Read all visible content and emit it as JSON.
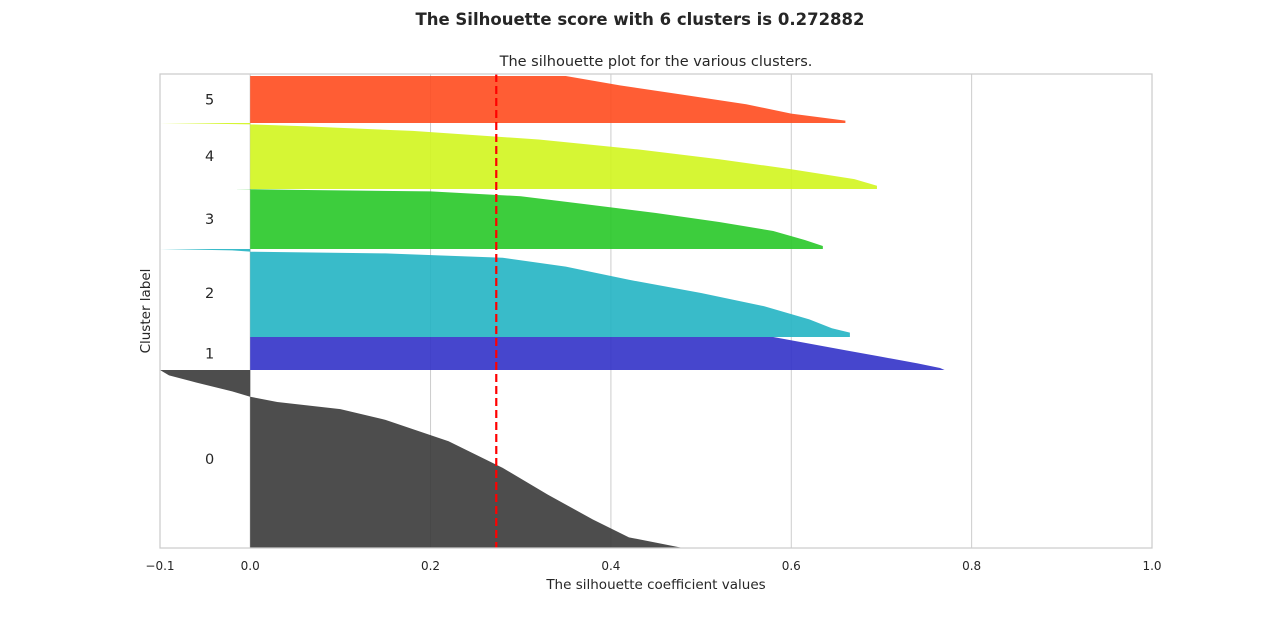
{
  "chart_data": {
    "type": "silhouette",
    "suptitle": "The Silhouette score with 6 clusters is 0.272882",
    "title": "The silhouette plot for the various clusters.",
    "xlabel": "The silhouette coefficient values",
    "ylabel": "Cluster label",
    "xlim": [
      -0.1,
      1.0
    ],
    "xticks": [
      {
        "value": -0.1,
        "label": "−0.1"
      },
      {
        "value": 0.0,
        "label": "0.0"
      },
      {
        "value": 0.2,
        "label": "0.2"
      },
      {
        "value": 0.4,
        "label": "0.4"
      },
      {
        "value": 0.6,
        "label": "0.6"
      },
      {
        "value": 0.8,
        "label": "0.8"
      },
      {
        "value": 1.0,
        "label": "1.0"
      }
    ],
    "grid": "vertical",
    "y_total": 474,
    "average_score": 0.272882,
    "average_line_color": "#ff0000",
    "clusters": [
      {
        "label": "0",
        "color": "#3a3a3a",
        "size": 178,
        "profile": [
          [
            0.0,
            0.48
          ],
          [
            0.06,
            0.42
          ],
          [
            0.16,
            0.38
          ],
          [
            0.3,
            0.33
          ],
          [
            0.45,
            0.28
          ],
          [
            0.6,
            0.22
          ],
          [
            0.72,
            0.15
          ],
          [
            0.78,
            0.1
          ],
          [
            0.82,
            0.03
          ],
          [
            0.85,
            0.0
          ],
          [
            0.88,
            -0.02
          ],
          [
            0.93,
            -0.06
          ],
          [
            0.97,
            -0.09
          ],
          [
            1.0,
            -0.1
          ]
        ]
      },
      {
        "label": "1",
        "color": "#3232c8",
        "size": 33,
        "profile": [
          [
            0.0,
            0.77
          ],
          [
            0.06,
            0.765
          ],
          [
            0.2,
            0.74
          ],
          [
            0.4,
            0.7
          ],
          [
            0.6,
            0.66
          ],
          [
            0.8,
            0.62
          ],
          [
            1.0,
            0.58
          ]
        ]
      },
      {
        "label": "2",
        "color": "#23b4c3",
        "size": 88,
        "profile": [
          [
            0.0,
            0.665
          ],
          [
            0.05,
            0.665
          ],
          [
            0.1,
            0.645
          ],
          [
            0.2,
            0.62
          ],
          [
            0.35,
            0.57
          ],
          [
            0.5,
            0.5
          ],
          [
            0.65,
            0.42
          ],
          [
            0.8,
            0.35
          ],
          [
            0.9,
            0.28
          ],
          [
            0.95,
            0.15
          ],
          [
            0.97,
            0.0
          ],
          [
            0.985,
            -0.02
          ],
          [
            1.0,
            -0.1
          ]
        ]
      },
      {
        "label": "3",
        "color": "#28c828",
        "size": 60,
        "profile": [
          [
            0.0,
            0.635
          ],
          [
            0.05,
            0.635
          ],
          [
            0.15,
            0.615
          ],
          [
            0.3,
            0.58
          ],
          [
            0.45,
            0.52
          ],
          [
            0.6,
            0.45
          ],
          [
            0.75,
            0.37
          ],
          [
            0.88,
            0.3
          ],
          [
            0.96,
            0.2
          ],
          [
            0.985,
            0.05
          ],
          [
            1.0,
            -0.015
          ]
        ]
      },
      {
        "label": "4",
        "color": "#d2f51e",
        "size": 66,
        "profile": [
          [
            0.0,
            0.695
          ],
          [
            0.05,
            0.695
          ],
          [
            0.15,
            0.67
          ],
          [
            0.3,
            0.6
          ],
          [
            0.45,
            0.52
          ],
          [
            0.6,
            0.43
          ],
          [
            0.75,
            0.32
          ],
          [
            0.88,
            0.18
          ],
          [
            0.95,
            0.06
          ],
          [
            0.98,
            0.0
          ],
          [
            0.99,
            -0.05
          ],
          [
            1.0,
            -0.1
          ]
        ]
      },
      {
        "label": "5",
        "color": "#ff4b1e",
        "size": 47,
        "profile": [
          [
            0.0,
            0.66
          ],
          [
            0.05,
            0.66
          ],
          [
            0.2,
            0.6
          ],
          [
            0.4,
            0.55
          ],
          [
            0.6,
            0.48
          ],
          [
            0.8,
            0.41
          ],
          [
            1.0,
            0.35
          ]
        ]
      }
    ]
  }
}
